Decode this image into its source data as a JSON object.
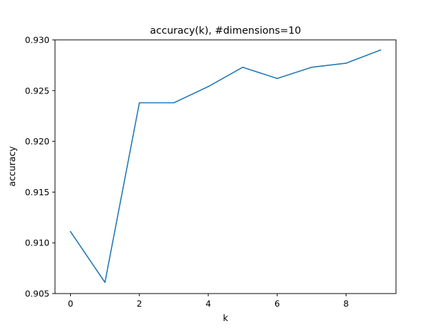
{
  "chart_data": {
    "type": "line",
    "title": "accuracy(k), #dimensions=10",
    "xlabel": "k",
    "ylabel": "accuracy",
    "xlim": [
      -0.45,
      9.45
    ],
    "ylim": [
      0.905,
      0.93
    ],
    "xticks": [
      0,
      2,
      4,
      6,
      8
    ],
    "xtick_labels": [
      "0",
      "2",
      "4",
      "6",
      "8"
    ],
    "yticks": [
      0.905,
      0.91,
      0.915,
      0.92,
      0.925,
      0.93
    ],
    "ytick_labels": [
      "0.905",
      "0.910",
      "0.915",
      "0.920",
      "0.925",
      "0.930"
    ],
    "grid": false,
    "line_color": "#1f77b4",
    "series": [
      {
        "x": [
          0,
          1,
          2,
          3,
          4,
          5,
          6,
          7,
          8,
          9
        ],
        "values": [
          0.9111,
          0.9061,
          0.9238,
          0.9238,
          0.9254,
          0.9273,
          0.9262,
          0.9273,
          0.9277,
          0.929
        ]
      }
    ]
  }
}
